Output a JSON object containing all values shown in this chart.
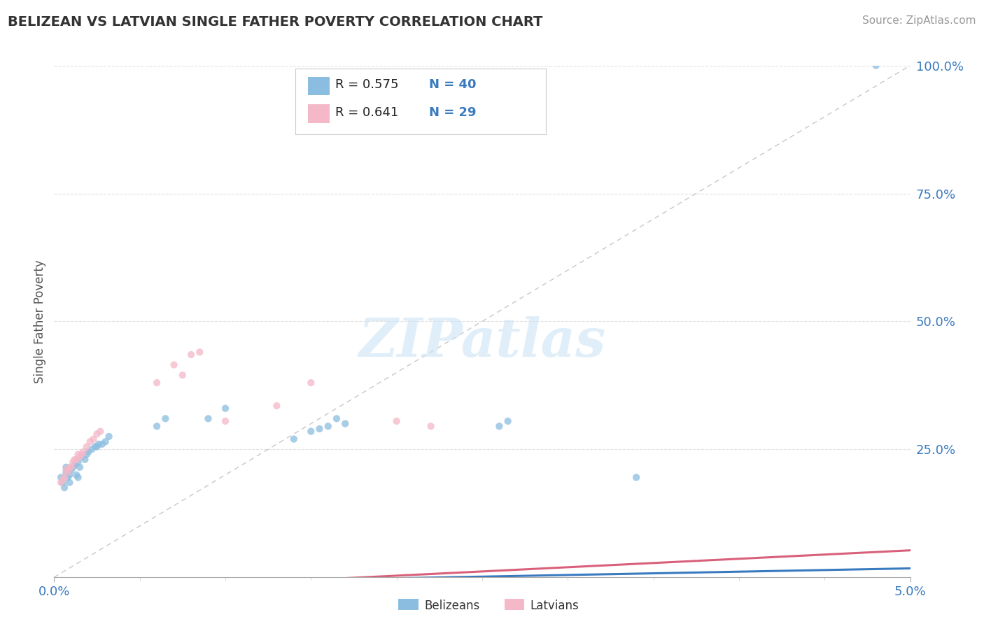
{
  "title": "BELIZEAN VS LATVIAN SINGLE FATHER POVERTY CORRELATION CHART",
  "source": "Source: ZipAtlas.com",
  "ylabel": "Single Father Poverty",
  "xlim": [
    0.0,
    0.05
  ],
  "ylim": [
    0.0,
    1.0
  ],
  "ytick_labels": [
    "25.0%",
    "50.0%",
    "75.0%",
    "100.0%"
  ],
  "ytick_values": [
    0.25,
    0.5,
    0.75,
    1.0
  ],
  "belizean_color": "#8bbde0",
  "latvian_color": "#f4b8c8",
  "belizean_line_color": "#3a7abf",
  "latvian_line_color": "#d9607a",
  "diag_line_color": "#c8c8c8",
  "legend_R_belizean": "0.575",
  "legend_N_belizean": "40",
  "legend_R_latvian": "0.641",
  "legend_N_latvian": "29",
  "belizean_x": [
    0.0004,
    0.0005,
    0.0006,
    0.0007,
    0.0007,
    0.0008,
    0.0009,
    0.0009,
    0.001,
    0.0011,
    0.0012,
    0.0013,
    0.0014,
    0.0014,
    0.0015,
    0.0016,
    0.0018,
    0.0019,
    0.002,
    0.0022,
    0.0024,
    0.0025,
    0.0026,
    0.0028,
    0.003,
    0.0032,
    0.006,
    0.0065,
    0.009,
    0.01,
    0.014,
    0.015,
    0.0155,
    0.016,
    0.0165,
    0.017,
    0.026,
    0.0265,
    0.034,
    0.048
  ],
  "belizean_y": [
    0.195,
    0.185,
    0.175,
    0.205,
    0.215,
    0.195,
    0.185,
    0.2,
    0.21,
    0.215,
    0.22,
    0.2,
    0.195,
    0.225,
    0.215,
    0.235,
    0.23,
    0.24,
    0.245,
    0.25,
    0.255,
    0.255,
    0.26,
    0.26,
    0.265,
    0.275,
    0.295,
    0.31,
    0.31,
    0.33,
    0.27,
    0.285,
    0.29,
    0.295,
    0.31,
    0.3,
    0.295,
    0.305,
    0.195,
    1.0
  ],
  "latvian_x": [
    0.0004,
    0.0005,
    0.0006,
    0.0007,
    0.0008,
    0.0009,
    0.001,
    0.0011,
    0.0012,
    0.0013,
    0.0014,
    0.0015,
    0.0016,
    0.0017,
    0.0019,
    0.0021,
    0.0023,
    0.0025,
    0.0027,
    0.006,
    0.007,
    0.0075,
    0.008,
    0.0085,
    0.01,
    0.013,
    0.015,
    0.02,
    0.022
  ],
  "latvian_y": [
    0.185,
    0.19,
    0.195,
    0.21,
    0.205,
    0.215,
    0.215,
    0.225,
    0.23,
    0.23,
    0.24,
    0.235,
    0.24,
    0.245,
    0.255,
    0.265,
    0.27,
    0.28,
    0.285,
    0.38,
    0.415,
    0.395,
    0.435,
    0.44,
    0.305,
    0.335,
    0.38,
    0.305,
    0.295
  ],
  "belizean_trend": [
    -0.015,
    0.645
  ],
  "latvian_trend": [
    -0.03,
    1.65
  ],
  "watermark_text": "ZIPatlas",
  "background_color": "#ffffff",
  "grid_color": "#e0e0e0"
}
